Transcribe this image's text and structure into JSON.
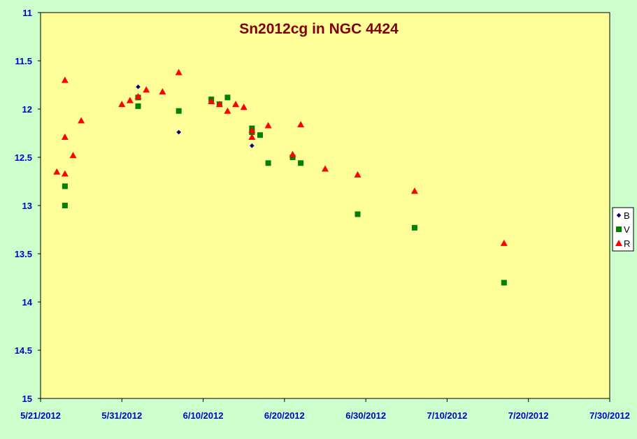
{
  "chart_data": {
    "type": "scatter",
    "title": "Sn2012cg in NGC 4424",
    "xlabel": "",
    "ylabel": "",
    "x_ticks": [
      "5/21/2012",
      "5/31/2012",
      "6/10/2012",
      "6/20/2012",
      "6/30/2012",
      "7/10/2012",
      "7/20/2012",
      "7/30/2012"
    ],
    "y_ticks": [
      "11",
      "11.5",
      "12",
      "12.5",
      "13",
      "13.5",
      "14",
      "14.5",
      "15"
    ],
    "xlim": [
      "2012-05-21",
      "2012-07-30"
    ],
    "ylim": [
      15,
      11
    ],
    "y_reversed": true,
    "grid": false,
    "legend_position": "right",
    "colors": {
      "plot_background": "#ffff99",
      "chart_background": "#ccffcc",
      "title": "#800000",
      "tick_labels": "#0000cc",
      "B": "#000080",
      "V": "#008000",
      "R": "#ff0000"
    },
    "series": [
      {
        "name": "B",
        "marker": "diamond",
        "x": [
          "2012-06-02",
          "2012-06-07",
          "2012-06-16"
        ],
        "y": [
          11.77,
          12.24,
          12.38
        ]
      },
      {
        "name": "V",
        "marker": "square",
        "x": [
          "2012-05-24",
          "2012-05-24",
          "2012-06-02",
          "2012-06-02",
          "2012-06-07",
          "2012-06-11",
          "2012-06-12",
          "2012-06-13",
          "2012-06-16",
          "2012-06-16",
          "2012-06-17",
          "2012-06-18",
          "2012-06-21",
          "2012-06-22",
          "2012-06-29",
          "2012-07-06",
          "2012-07-17"
        ],
        "y": [
          13.0,
          12.8,
          11.88,
          11.97,
          12.02,
          11.9,
          11.95,
          11.88,
          12.2,
          12.24,
          12.27,
          12.56,
          12.5,
          12.56,
          13.09,
          13.23,
          13.8
        ]
      },
      {
        "name": "R",
        "marker": "triangle",
        "x": [
          "2012-05-23",
          "2012-05-24",
          "2012-05-24",
          "2012-05-24",
          "2012-05-25",
          "2012-05-26",
          "2012-05-31",
          "2012-06-01",
          "2012-06-02",
          "2012-06-03",
          "2012-06-05",
          "2012-06-07",
          "2012-06-11",
          "2012-06-12",
          "2012-06-13",
          "2012-06-14",
          "2012-06-15",
          "2012-06-16",
          "2012-06-16",
          "2012-06-18",
          "2012-06-21",
          "2012-06-22",
          "2012-06-25",
          "2012-06-29",
          "2012-07-06",
          "2012-07-17"
        ],
        "y": [
          12.65,
          12.67,
          11.7,
          12.29,
          12.48,
          12.12,
          11.95,
          11.91,
          11.87,
          11.8,
          11.82,
          11.62,
          11.92,
          11.95,
          12.02,
          11.95,
          11.98,
          12.22,
          12.29,
          12.17,
          12.47,
          12.16,
          12.62,
          12.68,
          12.85,
          13.39
        ]
      }
    ]
  }
}
